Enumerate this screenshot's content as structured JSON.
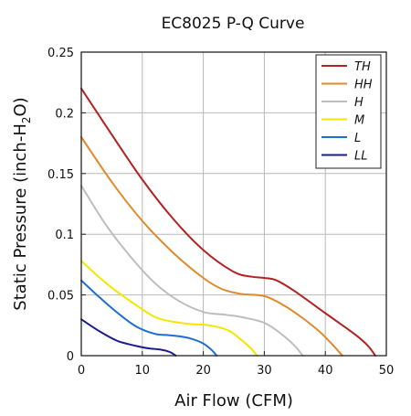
{
  "chart_data": {
    "type": "line",
    "title": "EC8025 P-Q Curve",
    "xlabel": "Air Flow (CFM)",
    "ylabel_parts": [
      "Static Pressure (inch-H",
      "2",
      "O)"
    ],
    "xlim": [
      0,
      50
    ],
    "ylim": [
      0,
      0.25
    ],
    "xticks": [
      0,
      10,
      20,
      30,
      40,
      50
    ],
    "yticks": [
      0,
      0.05,
      0.1,
      0.15,
      0.2,
      0.25
    ],
    "xtick_labels": [
      "0",
      "10",
      "20",
      "30",
      "40",
      "50"
    ],
    "ytick_labels": [
      "0",
      "0.05",
      "0.1",
      "0.15",
      "0.2",
      "0.25"
    ],
    "grid": true,
    "legend_position": "top-right",
    "series": [
      {
        "name": "TH",
        "color": "#b22222",
        "x": [
          0,
          5,
          10,
          15,
          20,
          25,
          28,
          30,
          32,
          35,
          40,
          45,
          47,
          48.2
        ],
        "y": [
          0.22,
          0.182,
          0.145,
          0.113,
          0.087,
          0.069,
          0.065,
          0.064,
          0.062,
          0.053,
          0.035,
          0.017,
          0.008,
          0
        ]
      },
      {
        "name": "HH",
        "color": "#e08a2a",
        "x": [
          0,
          5,
          10,
          15,
          20,
          23,
          26,
          30,
          33,
          36,
          39,
          41,
          42.8
        ],
        "y": [
          0.18,
          0.143,
          0.111,
          0.085,
          0.064,
          0.055,
          0.051,
          0.049,
          0.042,
          0.032,
          0.02,
          0.01,
          0
        ]
      },
      {
        "name": "H",
        "color": "#bdbdbd",
        "x": [
          0,
          4,
          8,
          12,
          16,
          20,
          23,
          26,
          30,
          33,
          35,
          36.3
        ],
        "y": [
          0.14,
          0.108,
          0.082,
          0.06,
          0.045,
          0.036,
          0.034,
          0.032,
          0.027,
          0.017,
          0.008,
          0
        ]
      },
      {
        "name": "M",
        "color": "#f5e600",
        "x": [
          0,
          4,
          8,
          12,
          15,
          18,
          21,
          24,
          26,
          27.8,
          28.8
        ],
        "y": [
          0.078,
          0.06,
          0.045,
          0.032,
          0.028,
          0.026,
          0.025,
          0.021,
          0.014,
          0.006,
          0
        ]
      },
      {
        "name": "L",
        "color": "#1f6fd1",
        "x": [
          0,
          3,
          6,
          9,
          12,
          14,
          16,
          18,
          20,
          21.3,
          22.2
        ],
        "y": [
          0.062,
          0.048,
          0.035,
          0.024,
          0.018,
          0.017,
          0.016,
          0.014,
          0.01,
          0.005,
          0
        ]
      },
      {
        "name": "LL",
        "color": "#1c1c8c",
        "x": [
          0,
          3,
          6,
          9,
          11,
          13,
          14.5,
          15.5
        ],
        "y": [
          0.03,
          0.02,
          0.012,
          0.008,
          0.006,
          0.005,
          0.003,
          0
        ]
      }
    ]
  }
}
